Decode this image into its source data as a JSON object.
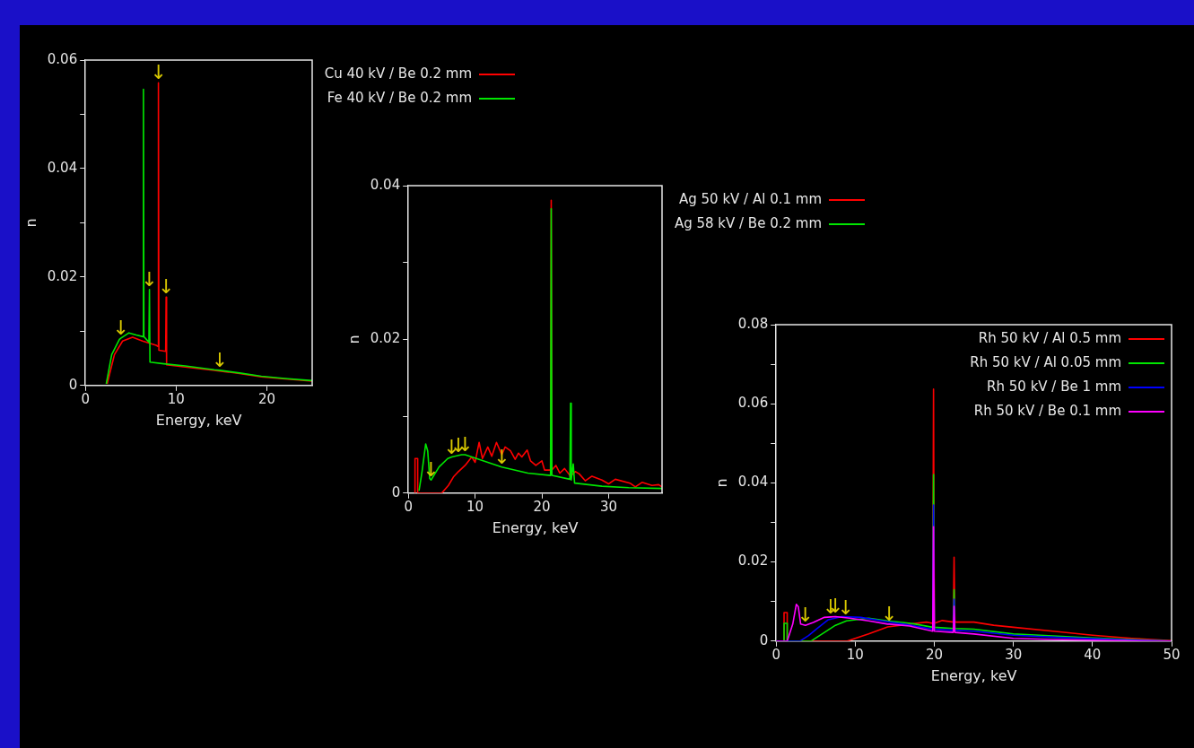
{
  "chart_data": [
    {
      "type": "line",
      "xlabel": "Energy, keV",
      "ylabel": "n",
      "xlim": [
        0,
        25
      ],
      "xticks": [
        0,
        10,
        20
      ],
      "ylim": [
        0,
        0.06
      ],
      "yticks": [
        0,
        {
          "value": 0.01,
          "label": null
        },
        0.02,
        {
          "value": 0.03,
          "label": null
        },
        0.04,
        {
          "value": 0.05,
          "label": null
        },
        0.06
      ],
      "grid": false,
      "legend": "right",
      "marker": "none",
      "series": [
        {
          "name": "Cu 40 kV / Be 0.2 mm",
          "color": "#ff0000",
          "x": [
            2.4,
            3.2,
            4.1,
            5.2,
            6.3,
            7.8,
            8.0,
            8.05,
            8.1,
            8.85,
            8.9,
            8.95,
            11,
            14.2,
            17,
            19.4,
            22,
            25
          ],
          "values": [
            0.0003,
            0.0057,
            0.0082,
            0.0089,
            0.0082,
            0.0074,
            0.0072,
            0.0558,
            0.0065,
            0.0063,
            0.0163,
            0.0038,
            0.0034,
            0.0028,
            0.0022,
            0.0016,
            0.0012,
            0.0008
          ]
        },
        {
          "name": "Fe 40 kV / Be 0.2 mm",
          "color": "#00e600",
          "x": [
            2.3,
            2.9,
            3.75,
            3.9,
            4.8,
            5.6,
            6.35,
            6.4,
            6.45,
            7.0,
            7.06,
            7.12,
            8.65,
            11,
            14.2,
            14.8,
            17,
            19.4,
            22,
            25
          ],
          "values": [
            0.0003,
            0.0057,
            0.0085,
            0.0087,
            0.0097,
            0.0093,
            0.009,
            0.0546,
            0.009,
            0.008,
            0.0177,
            0.0043,
            0.004,
            0.0036,
            0.0029,
            0.0028,
            0.0023,
            0.0017,
            0.0013,
            0.0009
          ]
        }
      ],
      "annotations": [
        {
          "text": "↓",
          "x": 3.9,
          "y": 0.0087
        },
        {
          "text": "↓",
          "x": 8.05,
          "y": 0.0558
        },
        {
          "text": "↓",
          "x": 7.06,
          "y": 0.0177
        },
        {
          "text": "↓",
          "x": 8.9,
          "y": 0.0163
        },
        {
          "text": "↓",
          "x": 14.8,
          "y": 0.0028
        }
      ]
    },
    {
      "type": "line",
      "xlabel": "Energy, keV",
      "ylabel": "n",
      "xlim": [
        0,
        38
      ],
      "xticks": [
        0,
        10,
        20,
        30
      ],
      "ylim": [
        0,
        0.04
      ],
      "yticks": [
        0,
        {
          "value": 0.01,
          "label": null
        },
        0.02,
        {
          "value": 0.03,
          "label": null
        },
        0.04
      ],
      "grid": false,
      "legend": "right",
      "marker": "none",
      "series": [
        {
          "name": "Ag 50 kV / Al 0.1 mm",
          "color": "#ff0000",
          "x": [
            1.0,
            1.0,
            1.4,
            1.4,
            5,
            6,
            6.75,
            7.5,
            8.5,
            9.5,
            10,
            10.6,
            11.1,
            11.9,
            12.5,
            13.2,
            14,
            14.5,
            15.3,
            16,
            16.5,
            17,
            17.8,
            18.3,
            19.1,
            20,
            20.4,
            21.3,
            21.4,
            21.5,
            22.1,
            22.7,
            23.4,
            24.3,
            25,
            25.6,
            26.5,
            27.5,
            29,
            30,
            31,
            33.2,
            34,
            35,
            36.5,
            37.5,
            38
          ],
          "values": [
            0,
            0.0045,
            0.0045,
            0,
            0,
            0.001,
            0.0021,
            0.0028,
            0.0036,
            0.0047,
            0.004,
            0.0066,
            0.0045,
            0.006,
            0.0048,
            0.0066,
            0.005,
            0.006,
            0.0055,
            0.0044,
            0.0052,
            0.0047,
            0.0056,
            0.0042,
            0.0036,
            0.0042,
            0.003,
            0.003,
            0.0381,
            0.003,
            0.0036,
            0.0026,
            0.0032,
            0.0022,
            0.0028,
            0.0025,
            0.0016,
            0.0022,
            0.0017,
            0.0012,
            0.0018,
            0.0013,
            0.0008,
            0.0014,
            0.001,
            0.0011,
            0.0008
          ]
        },
        {
          "name": "Ag 58 kV / Be 0.2 mm",
          "color": "#00e600",
          "x": [
            1.6,
            2.05,
            2.6,
            2.9,
            3.2,
            3.4,
            4.6,
            5.9,
            6.5,
            7.5,
            8,
            8.5,
            10.2,
            14,
            17.9,
            21.3,
            21.4,
            21.5,
            24.2,
            24.3,
            24.4,
            24.7,
            24.9,
            29,
            33,
            38
          ],
          "values": [
            0.0003,
            0.0028,
            0.0064,
            0.0055,
            0.0019,
            0.0017,
            0.0034,
            0.0045,
            0.0047,
            0.0049,
            0.005,
            0.005,
            0.0045,
            0.0034,
            0.0026,
            0.0023,
            0.037,
            0.0023,
            0.0018,
            0.0117,
            0.0017,
            0.0038,
            0.0013,
            0.0009,
            0.0007,
            0.0006
          ]
        }
      ],
      "annotations": [
        {
          "text": "↓",
          "x": 3.4,
          "y": 0.0017
        },
        {
          "text": "↓",
          "x": 6.5,
          "y": 0.0047
        },
        {
          "text": "↓",
          "x": 7.5,
          "y": 0.0049
        },
        {
          "text": "↓",
          "x": 8.5,
          "y": 0.005
        },
        {
          "text": "↓",
          "x": 14,
          "y": 0.0034
        }
      ]
    },
    {
      "type": "line",
      "xlabel": "Energy, keV",
      "ylabel": "n",
      "xlim": [
        0,
        50
      ],
      "xticks": [
        0,
        10,
        20,
        30,
        40,
        50
      ],
      "ylim": [
        0,
        0.08
      ],
      "yticks": [
        0,
        {
          "value": 0.01,
          "label": null
        },
        0.02,
        {
          "value": 0.03,
          "label": null
        },
        0.04,
        {
          "value": 0.05,
          "label": null
        },
        0.06,
        {
          "value": 0.07,
          "label": null
        },
        0.08
      ],
      "grid": false,
      "legend": "top right",
      "marker": "none",
      "series": [
        {
          "name": "Rh 50 kV / Al 0.5 mm",
          "color": "#ff0000",
          "x": [
            0,
            1.0,
            1.0,
            1.4,
            1.4,
            9,
            10,
            11.7,
            14.1,
            16.9,
            19,
            19.8,
            19.9,
            20,
            21,
            22.4,
            22.5,
            22.6,
            25,
            27.5,
            30,
            35,
            40,
            45,
            50
          ],
          "values": [
            0,
            0,
            0.0072,
            0.0072,
            0,
            0,
            0.0007,
            0.0018,
            0.0036,
            0.0043,
            0.0048,
            0.0045,
            0.0637,
            0.0045,
            0.0052,
            0.0048,
            0.0212,
            0.0048,
            0.0048,
            0.004,
            0.0035,
            0.0025,
            0.0015,
            0.0007,
            0.0001
          ]
        },
        {
          "name": "Rh 50 kV / Al 0.05 mm",
          "color": "#00e600",
          "x": [
            0,
            1.0,
            1.0,
            1.4,
            1.4,
            4.4,
            5.8,
            7.5,
            8.9,
            11.7,
            14.1,
            17,
            19.8,
            19.9,
            20,
            22.4,
            22.5,
            22.6,
            25,
            30,
            35,
            40,
            45,
            50
          ],
          "values": [
            0,
            0,
            0.0045,
            0.0045,
            0,
            0,
            0.0018,
            0.004,
            0.0051,
            0.0058,
            0.0051,
            0.0045,
            0.0035,
            0.0421,
            0.0035,
            0.0032,
            0.013,
            0.0032,
            0.003,
            0.0018,
            0.0013,
            0.0008,
            0.0004,
            0
          ]
        },
        {
          "name": "Rh 50 kV / Be 1 mm",
          "color": "#0000ff",
          "x": [
            0,
            3,
            4.1,
            5.2,
            6.6,
            8.3,
            10.7,
            13.4,
            17,
            19.8,
            19.9,
            20,
            22.4,
            22.5,
            22.6,
            25,
            30,
            35,
            40,
            45,
            50
          ],
          "values": [
            0,
            0,
            0.0014,
            0.0032,
            0.0054,
            0.0062,
            0.006,
            0.0051,
            0.004,
            0.003,
            0.0344,
            0.003,
            0.0027,
            0.0106,
            0.0027,
            0.0025,
            0.0015,
            0.001,
            0.0006,
            0.0003,
            0
          ]
        },
        {
          "name": "Rh 50 kV / Be 0.1 mm",
          "color": "#ff00ff",
          "x": [
            0,
            1.4,
            2.1,
            2.55,
            2.8,
            3.1,
            3.7,
            4.7,
            6.1,
            6.9,
            7.5,
            8.8,
            9.3,
            11.7,
            14.1,
            14.3,
            16.9,
            19.8,
            19.9,
            20,
            22.4,
            22.5,
            22.6,
            25,
            30,
            35,
            40,
            50
          ],
          "values": [
            0,
            0,
            0.0043,
            0.0093,
            0.0087,
            0.0043,
            0.004,
            0.0047,
            0.006,
            0.0061,
            0.0062,
            0.0059,
            0.0058,
            0.0051,
            0.0043,
            0.0043,
            0.0038,
            0.0025,
            0.0289,
            0.0025,
            0.0022,
            0.0088,
            0.0022,
            0.0018,
            0.0007,
            0.0004,
            0.0002,
            0
          ]
        }
      ],
      "annotations": [
        {
          "text": "↓",
          "x": 3.7,
          "y": 0.004
        },
        {
          "text": "↓",
          "x": 6.9,
          "y": 0.0061
        },
        {
          "text": "↓",
          "x": 7.5,
          "y": 0.0062
        },
        {
          "text": "↓",
          "x": 8.8,
          "y": 0.0059
        },
        {
          "text": "↓",
          "x": 14.3,
          "y": 0.0043
        }
      ]
    }
  ]
}
